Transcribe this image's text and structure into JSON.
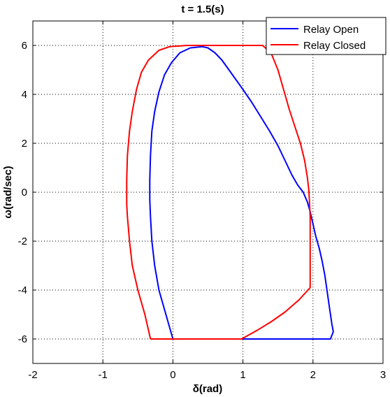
{
  "chart_data": {
    "type": "line",
    "title": "t = 1.5(s)",
    "xlabel": "δ(rad)",
    "ylabel": "ω(rad/sec)",
    "xlim": [
      -2,
      3
    ],
    "ylim": [
      -7,
      7
    ],
    "xticks": [
      -2,
      -1,
      0,
      1,
      2,
      3
    ],
    "yticks": [
      -6,
      -4,
      -2,
      0,
      2,
      4,
      6
    ],
    "grid": true,
    "legend_position": "top-right",
    "series": [
      {
        "name": "Relay Open",
        "color": "#0000ff",
        "x": [
          0.0,
          -0.1,
          -0.2,
          -0.26,
          -0.3,
          -0.32,
          -0.33,
          -0.33,
          -0.32,
          -0.3,
          -0.26,
          -0.2,
          -0.12,
          -0.02,
          0.1,
          0.25,
          0.42,
          0.5,
          0.6,
          0.7,
          0.8,
          0.9,
          1.0,
          1.12,
          1.25,
          1.38,
          1.5,
          1.6,
          1.7,
          1.78,
          1.86,
          1.92,
          1.96,
          2.0,
          2.04,
          2.09,
          2.13,
          2.17,
          2.2,
          2.24,
          2.27,
          2.29,
          2.25,
          1.6,
          1.0,
          0.6,
          0.2,
          0.0
        ],
        "y": [
          -6.0,
          -5.0,
          -4.0,
          -3.0,
          -2.0,
          -1.0,
          -0.3,
          0.5,
          1.5,
          2.5,
          3.3,
          4.1,
          4.8,
          5.3,
          5.7,
          5.9,
          5.95,
          5.9,
          5.7,
          5.4,
          5.0,
          4.6,
          4.2,
          3.7,
          3.1,
          2.5,
          1.9,
          1.3,
          0.7,
          0.3,
          0.0,
          -0.4,
          -0.8,
          -1.3,
          -1.8,
          -2.3,
          -2.8,
          -3.4,
          -4.0,
          -4.8,
          -5.4,
          -5.7,
          -6.0,
          -6.0,
          -6.0,
          -6.0,
          -6.0,
          -6.0
        ]
      },
      {
        "name": "Relay Closed",
        "color": "#ff0000",
        "x": [
          -0.32,
          -0.4,
          -0.5,
          -0.58,
          -0.62,
          -0.65,
          -0.66,
          -0.66,
          -0.65,
          -0.62,
          -0.58,
          -0.52,
          -0.45,
          -0.35,
          -0.2,
          -0.05,
          0.2,
          1.28,
          1.4,
          1.5,
          1.58,
          1.66,
          1.74,
          1.82,
          1.88,
          1.92,
          1.94,
          1.95,
          1.96,
          1.96,
          1.96,
          1.96,
          1.96,
          1.8,
          1.6,
          1.4,
          1.2,
          0.98,
          0.6,
          0.2,
          -0.32
        ],
        "y": [
          -6.0,
          -5.0,
          -4.0,
          -3.0,
          -2.0,
          -1.0,
          -0.5,
          0.5,
          1.5,
          2.5,
          3.3,
          4.2,
          4.9,
          5.4,
          5.8,
          5.95,
          6.0,
          6.0,
          5.7,
          5.0,
          4.2,
          3.4,
          2.7,
          2.0,
          1.3,
          0.6,
          0.1,
          -0.4,
          -1.0,
          -2.0,
          -3.0,
          -3.5,
          -3.9,
          -4.4,
          -4.9,
          -5.3,
          -5.65,
          -6.0,
          -6.0,
          -6.0,
          -6.0
        ]
      }
    ]
  }
}
